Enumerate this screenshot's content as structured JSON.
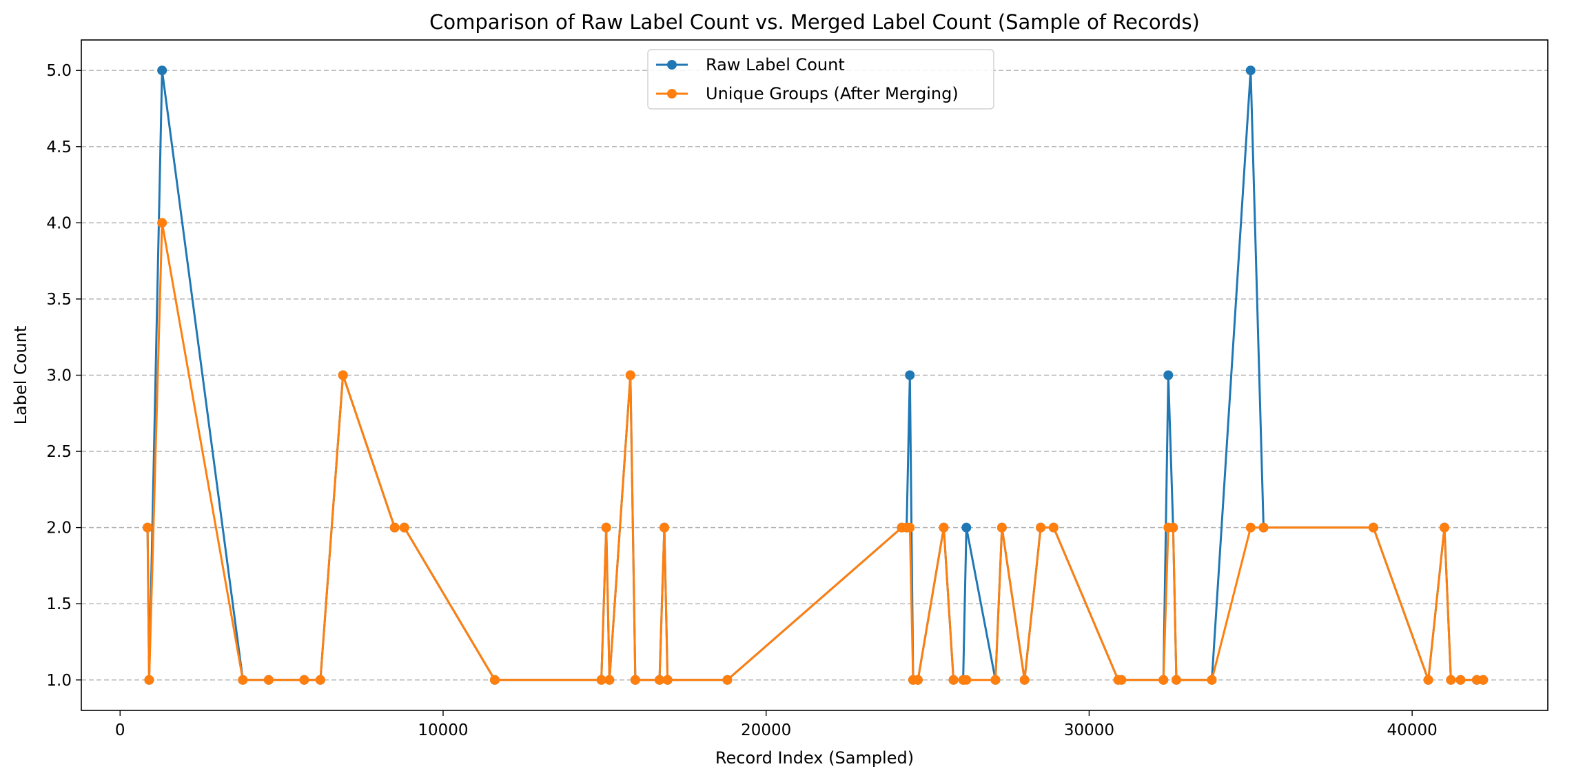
{
  "chart_data": {
    "type": "line",
    "title": "Comparison of Raw Label Count vs. Merged Label Count (Sample of Records)",
    "xlabel": "Record Index (Sampled)",
    "ylabel": "Label Count",
    "xlim": [
      -1200,
      44200
    ],
    "ylim": [
      0.8,
      5.2
    ],
    "xticks": [
      0,
      10000,
      20000,
      30000,
      40000
    ],
    "xtick_labels": [
      "0",
      "10000",
      "20000",
      "30000",
      "40000"
    ],
    "yticks": [
      1.0,
      1.5,
      2.0,
      2.5,
      3.0,
      3.5,
      4.0,
      4.5,
      5.0
    ],
    "ytick_labels": [
      "1.0",
      "1.5",
      "2.0",
      "2.5",
      "3.0",
      "3.5",
      "4.0",
      "4.5",
      "5.0"
    ],
    "grid": "y-dashed",
    "legend_position": "top-center",
    "x": [
      850,
      900,
      1300,
      3800,
      4600,
      5700,
      6200,
      6900,
      8500,
      8800,
      11600,
      14900,
      15050,
      15150,
      15800,
      15950,
      16700,
      16850,
      16950,
      18800,
      24200,
      24350,
      24450,
      24550,
      24700,
      25500,
      25800,
      26100,
      26200,
      27100,
      27300,
      28000,
      28500,
      28900,
      30900,
      31000,
      32300,
      32450,
      32600,
      32700,
      33800,
      35000,
      35400,
      38800,
      40500,
      41000,
      41200,
      41500,
      42000,
      42200
    ],
    "series": [
      {
        "name": "Raw Label Count",
        "color": "#1f77b4",
        "values": [
          2,
          1,
          5,
          1,
          1,
          1,
          1,
          3,
          2,
          2,
          1,
          1,
          2,
          1,
          3,
          1,
          1,
          2,
          1,
          1,
          2,
          2,
          3,
          1,
          1,
          2,
          1,
          1,
          2,
          1,
          2,
          1,
          2,
          2,
          1,
          1,
          1,
          3,
          2,
          1,
          1,
          5,
          2,
          2,
          1,
          2,
          1,
          1,
          1,
          1
        ]
      },
      {
        "name": "Unique Groups (After Merging)",
        "color": "#ff7f0e",
        "values": [
          2,
          1,
          4,
          1,
          1,
          1,
          1,
          3,
          2,
          2,
          1,
          1,
          2,
          1,
          3,
          1,
          1,
          2,
          1,
          1,
          2,
          2,
          2,
          1,
          1,
          2,
          1,
          1,
          1,
          1,
          2,
          1,
          2,
          2,
          1,
          1,
          1,
          2,
          2,
          1,
          1,
          2,
          2,
          2,
          1,
          2,
          1,
          1,
          1,
          1
        ]
      }
    ]
  }
}
